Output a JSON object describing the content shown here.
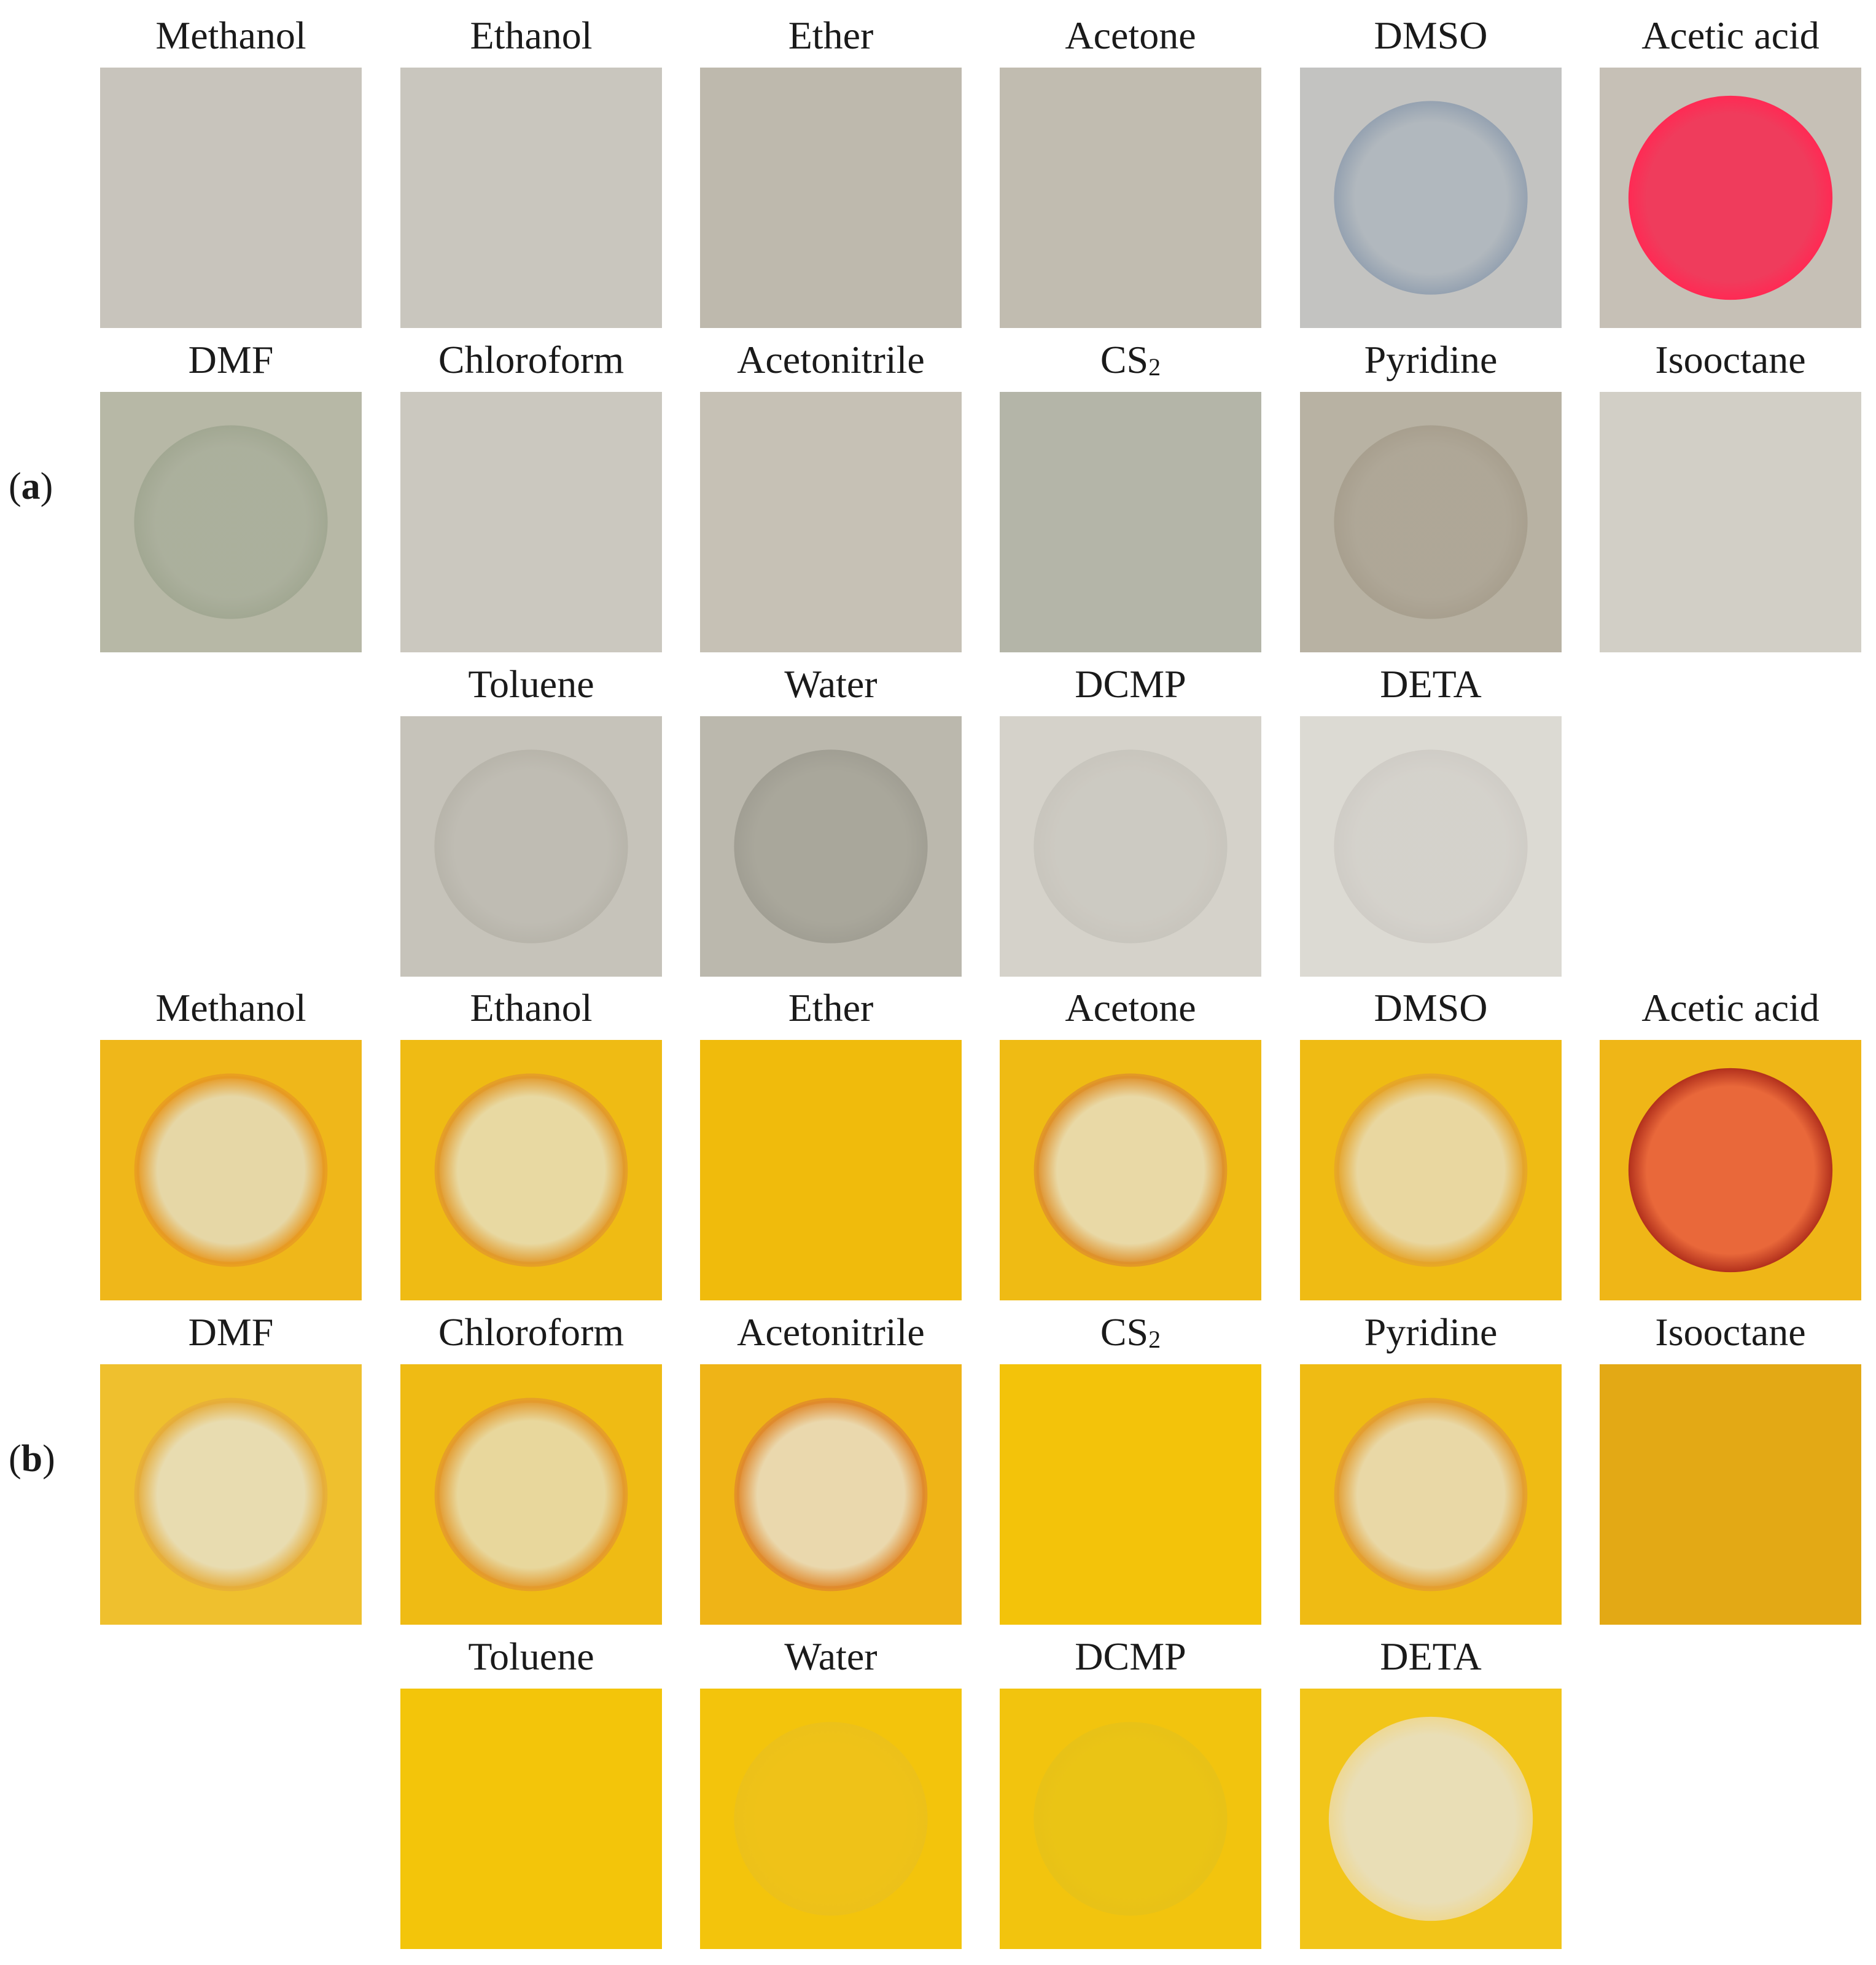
{
  "panels": [
    {
      "label": "a",
      "tiles": [
        {
          "caption": "Methanol",
          "bg": "#c8c4bc",
          "spot": "none"
        },
        {
          "caption": "Ethanol",
          "bg": "#c9c6be",
          "spot": "none"
        },
        {
          "caption": "Ether",
          "bg": "#beb9ad",
          "spot": "none"
        },
        {
          "caption": "Acetone",
          "bg": "#c1bcb0",
          "spot": "none"
        },
        {
          "caption": "DMSO",
          "bg": "#c3c3c1",
          "spot": "faint",
          "spot_color": "#aeb6bd",
          "rim_color": "#8d9cae"
        },
        {
          "caption": "Acetic acid",
          "bg": "#c6c0b6",
          "spot": "solid",
          "spot_color": "#ef3c5c",
          "rim_color": "#ff2a54"
        },
        {
          "caption": "DMF",
          "bg": "#b7b8a6",
          "spot": "faint",
          "spot_color": "#a9ae9b",
          "rim_color": "#9ea58f"
        },
        {
          "caption": "Chloroform",
          "bg": "#cbc8bf",
          "spot": "none"
        },
        {
          "caption": "Acetonitrile",
          "bg": "#c6c1b5",
          "spot": "none"
        },
        {
          "caption": "CS2",
          "bg": "#b4b5a8",
          "spot": "none"
        },
        {
          "caption": "Pyridine",
          "bg": "#b8b2a3",
          "spot": "faint",
          "spot_color": "#ada595",
          "rim_color": "#a59c8b"
        },
        {
          "caption": "Isooctane",
          "bg": "#d2cfc6",
          "spot": "none"
        },
        {
          "caption": "Toluene",
          "bg": "#c6c3ba",
          "spot": "faint",
          "spot_color": "#bebbb2",
          "rim_color": "#b5b2a8"
        },
        {
          "caption": "Water",
          "bg": "#bbb8ad",
          "spot": "faint",
          "spot_color": "#a6a498",
          "rim_color": "#9c9a8f"
        },
        {
          "caption": "DCMP",
          "bg": "#d5d2ca",
          "spot": "faint",
          "spot_color": "#cbc8c0",
          "rim_color": "#c6c3bb"
        },
        {
          "caption": "DETA",
          "bg": "#dcdad3",
          "spot": "faint",
          "spot_color": "#d3d0ca",
          "rim_color": "#cdcac4"
        }
      ]
    },
    {
      "label": "b",
      "tiles": [
        {
          "caption": "Methanol",
          "bg": "#efb71a",
          "spot": "ring",
          "spot_color": "#e6d7a6",
          "rim_color": "#e79a22"
        },
        {
          "caption": "Ethanol",
          "bg": "#efbb14",
          "spot": "ring",
          "spot_color": "#e8d9a2",
          "rim_color": "#e29a2a"
        },
        {
          "caption": "Ether",
          "bg": "#f0bb0c",
          "spot": "none"
        },
        {
          "caption": "Acetone",
          "bg": "#efbb14",
          "spot": "ring",
          "spot_color": "#e9d9a6",
          "rim_color": "#df912a"
        },
        {
          "caption": "DMSO",
          "bg": "#efbb14",
          "spot": "ring",
          "spot_color": "#e9d7a0",
          "rim_color": "#e5a429"
        },
        {
          "caption": "Acetic acid",
          "bg": "#efb617",
          "spot": "solid",
          "spot_color": "#e9683a",
          "rim_color": "#b2301c"
        },
        {
          "caption": "DMF",
          "bg": "#efc02e",
          "spot": "ring",
          "spot_color": "#e8dcb0",
          "rim_color": "#e6ad3a"
        },
        {
          "caption": "Chloroform",
          "bg": "#efbb14",
          "spot": "ring",
          "spot_color": "#e8d79c",
          "rim_color": "#e39a2c"
        },
        {
          "caption": "Acetonitrile",
          "bg": "#efb417",
          "spot": "ring",
          "spot_color": "#ead8ad",
          "rim_color": "#e08a2c"
        },
        {
          "caption": "CS2",
          "bg": "#f3c30a",
          "spot": "none"
        },
        {
          "caption": "Pyridine",
          "bg": "#efbb14",
          "spot": "ring",
          "spot_color": "#e9d8a6",
          "rim_color": "#e39e30"
        },
        {
          "caption": "Isooctane",
          "bg": "#e3a915",
          "spot": "none"
        },
        {
          "caption": "Toluene",
          "bg": "#f3c50a",
          "spot": "none"
        },
        {
          "caption": "Water",
          "bg": "#f3c40c",
          "spot": "faint",
          "spot_color": "#eec21a",
          "rim_color": "#ebc01c"
        },
        {
          "caption": "DCMP",
          "bg": "#f2c40e",
          "spot": "faint",
          "spot_color": "#e9c416",
          "rim_color": "#e6c119"
        },
        {
          "caption": "DETA",
          "bg": "#f2c519",
          "spot": "solid",
          "spot_color": "#e9deb6",
          "rim_color": "#eed893"
        }
      ]
    }
  ]
}
